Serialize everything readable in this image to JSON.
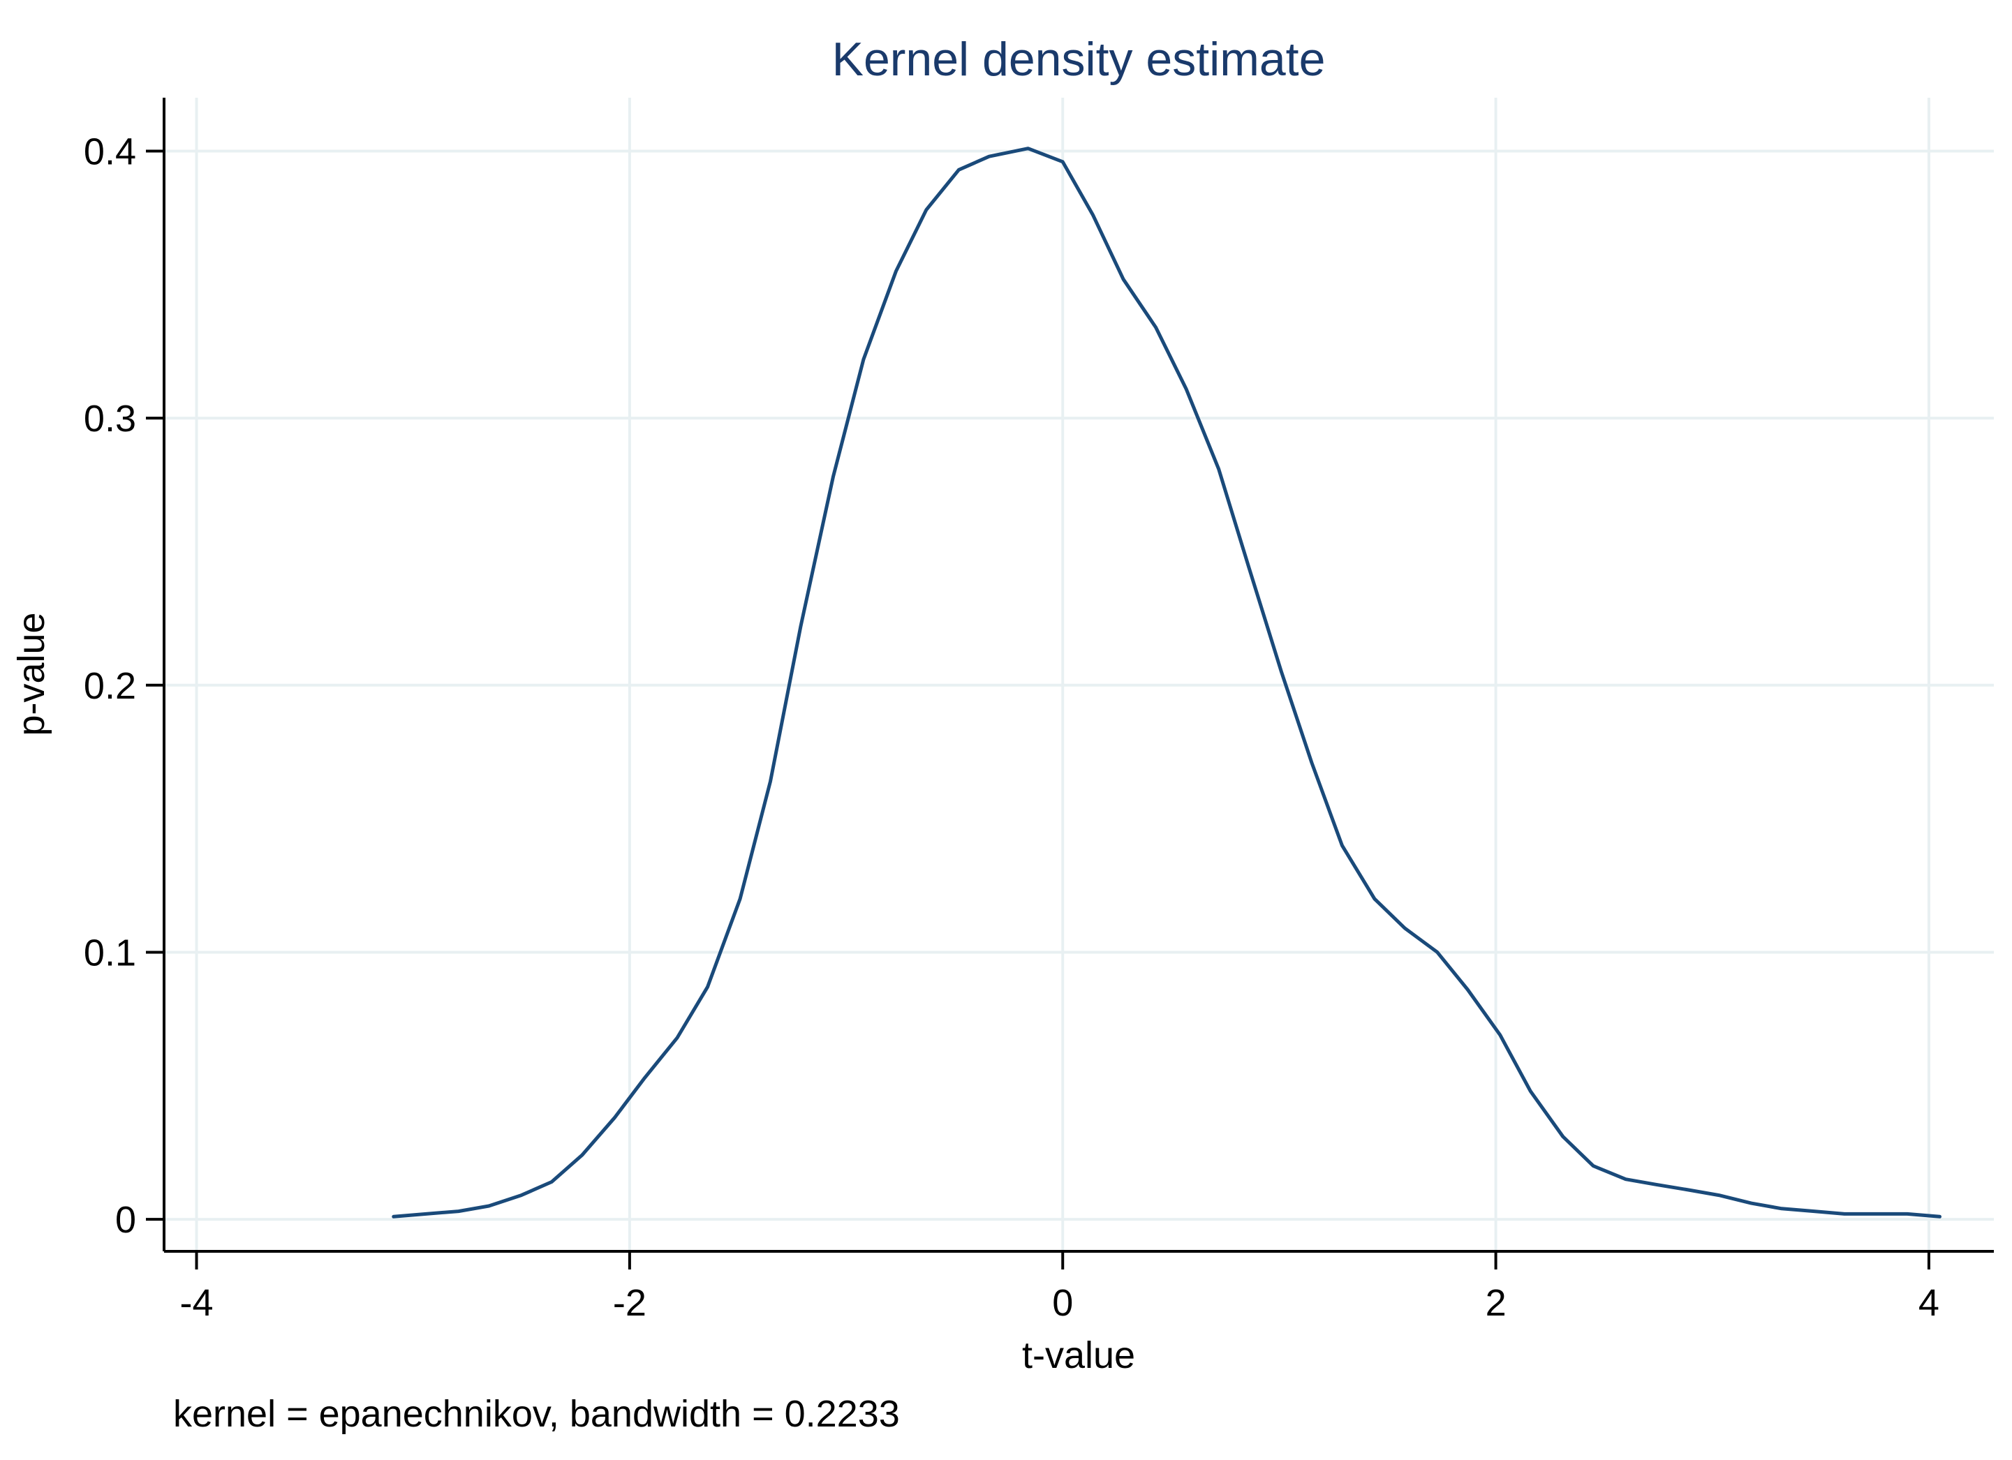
{
  "chart_data": {
    "type": "line",
    "title": "Kernel density estimate",
    "xlabel": "t-value",
    "ylabel": "p-value",
    "note": "kernel = epanechnikov, bandwidth = 0.2233",
    "xlim": [
      -4.15,
      4.3
    ],
    "ylim": [
      -0.012,
      0.42
    ],
    "x_ticks": [
      -4,
      -2,
      0,
      2,
      4
    ],
    "x_tick_labels": [
      "-4",
      "-2",
      "0",
      "2",
      "4"
    ],
    "y_ticks": [
      0,
      0.1,
      0.2,
      0.3,
      0.4
    ],
    "y_tick_labels": [
      "0",
      "0.1",
      "0.2",
      "0.3",
      "0.4"
    ],
    "grid": true,
    "line_color": "#1a4a7a",
    "grid_color": "#e8f0f2",
    "series": [
      {
        "name": "density",
        "x": [
          -3.09,
          -2.94,
          -2.79,
          -2.65,
          -2.5,
          -2.36,
          -2.22,
          -2.07,
          -1.93,
          -1.78,
          -1.64,
          -1.49,
          -1.35,
          -1.21,
          -1.06,
          -0.92,
          -0.77,
          -0.63,
          -0.48,
          -0.34,
          -0.16,
          0.0,
          0.14,
          0.28,
          0.43,
          0.57,
          0.72,
          0.86,
          1.01,
          1.15,
          1.29,
          1.44,
          1.58,
          1.73,
          1.87,
          2.02,
          2.16,
          2.31,
          2.45,
          2.6,
          2.74,
          2.89,
          3.03,
          3.18,
          3.32,
          3.47,
          3.61,
          3.76,
          3.9,
          4.05
        ],
        "y": [
          0.001,
          0.002,
          0.003,
          0.005,
          0.009,
          0.014,
          0.024,
          0.038,
          0.053,
          0.068,
          0.087,
          0.12,
          0.164,
          0.222,
          0.278,
          0.322,
          0.355,
          0.378,
          0.393,
          0.398,
          0.401,
          0.396,
          0.376,
          0.352,
          0.334,
          0.311,
          0.281,
          0.244,
          0.205,
          0.171,
          0.14,
          0.12,
          0.109,
          0.1,
          0.086,
          0.069,
          0.048,
          0.031,
          0.02,
          0.015,
          0.013,
          0.011,
          0.009,
          0.006,
          0.004,
          0.003,
          0.002,
          0.002,
          0.002,
          0.001
        ]
      }
    ]
  }
}
